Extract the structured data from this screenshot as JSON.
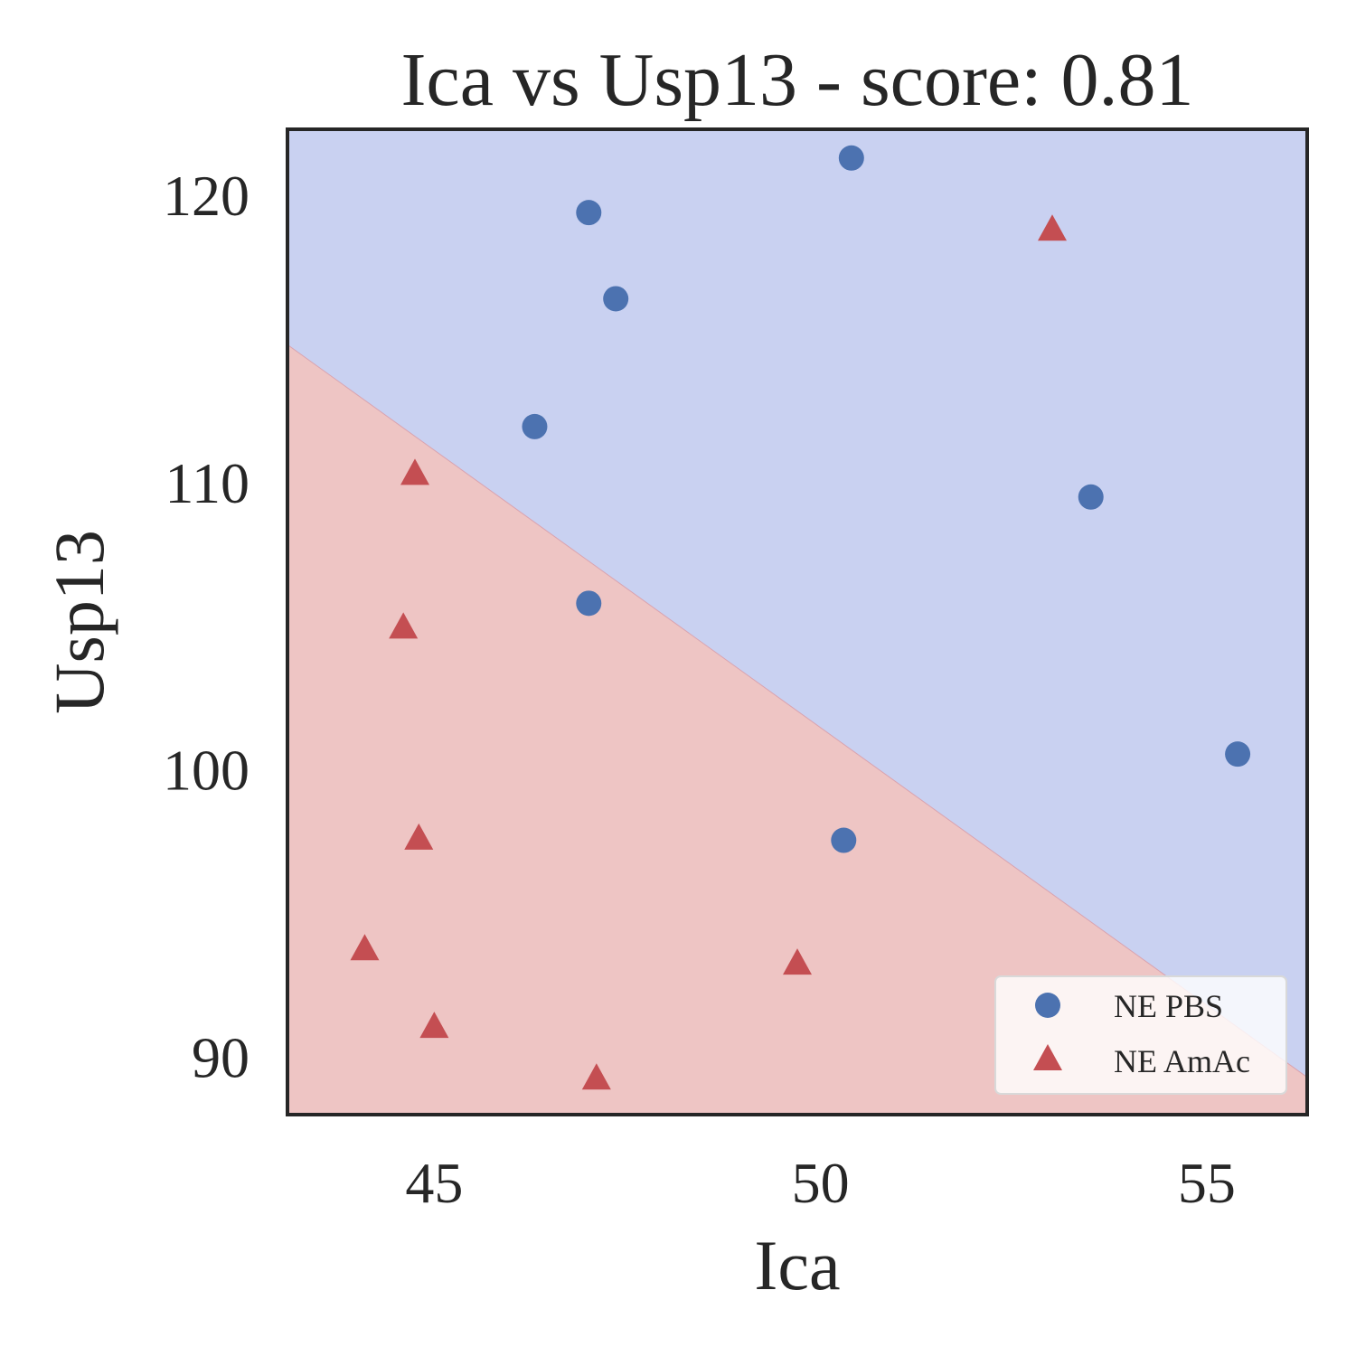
{
  "chart_data": {
    "type": "scatter",
    "title": "Ica vs Usp13 - score: 0.81",
    "xlabel": "Ica",
    "ylabel": "Usp13",
    "xlim": [
      43.1,
      56.3
    ],
    "ylim": [
      88.0,
      122.3
    ],
    "xticks": [
      45,
      50,
      55
    ],
    "yticks": [
      90,
      100,
      110,
      120
    ],
    "grid": false,
    "legend_position": "bottom-right",
    "decision_boundary": {
      "points": [
        [
          43.1,
          114.8
        ],
        [
          56.3,
          89.3
        ]
      ],
      "region_above": "NE PBS",
      "region_below": "NE AmAc"
    },
    "series": [
      {
        "name": "NE PBS",
        "marker": "circle",
        "color": "#4c72b0",
        "region_color": "#c9d1f1",
        "points": [
          [
            50.4,
            121.3
          ],
          [
            47.0,
            119.4
          ],
          [
            47.35,
            116.4
          ],
          [
            46.3,
            111.95
          ],
          [
            53.5,
            109.5
          ],
          [
            47.0,
            105.8
          ],
          [
            55.4,
            100.55
          ],
          [
            50.3,
            97.55
          ]
        ]
      },
      {
        "name": "NE AmAc",
        "marker": "triangle",
        "color": "#c44e52",
        "region_color": "#eec5c4",
        "points": [
          [
            53.0,
            118.8
          ],
          [
            44.75,
            110.3
          ],
          [
            44.6,
            104.95
          ],
          [
            44.8,
            97.6
          ],
          [
            44.1,
            93.75
          ],
          [
            49.7,
            93.25
          ],
          [
            45.0,
            91.05
          ],
          [
            47.1,
            89.25
          ]
        ]
      }
    ]
  }
}
